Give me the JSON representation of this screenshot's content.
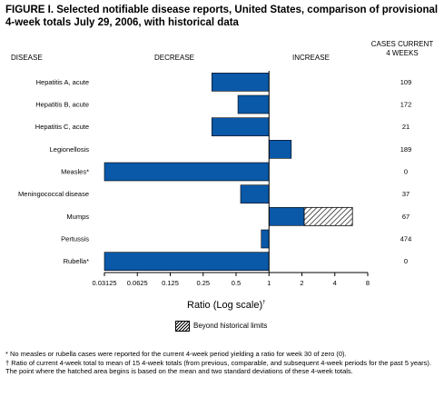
{
  "title": "FIGURE I. Selected notifiable disease reports, United States, comparison of provisional 4-week totals July 29, 2006, with historical data",
  "headers": {
    "disease": "DISEASE",
    "decrease": "DECREASE",
    "increase": "INCREASE",
    "cases_line1": "CASES CURRENT",
    "cases_line2": "4 WEEKS"
  },
  "xlabel": "Ratio (Log scale)",
  "xlabel_mark": "†",
  "legend": {
    "label": "Beyond historical limits"
  },
  "footnotes": [
    "* No measles or rubella cases were reported for the current 4-week period yielding a ratio for week 30 of zero (0).",
    "† Ratio of current 4-week total to mean of 15 4-week totals (from previous, comparable, and subsequent 4-week periods for the past 5 years). The point where the hatched area begins is based on the mean and two standard deviations of these 4-week totals."
  ],
  "colors": {
    "bar": "#0a58a8",
    "hatch": "#000000"
  },
  "chart_data": {
    "type": "bar",
    "orientation": "horizontal",
    "scale": "log2",
    "baseline": 1,
    "xlim": [
      0.03125,
      8
    ],
    "xticks": [
      0.03125,
      0.0625,
      0.125,
      0.25,
      0.5,
      1,
      2,
      4,
      8
    ],
    "xtick_labels": [
      "0.03125",
      "0.0625",
      "0.125",
      "0.25",
      "0.5",
      "1",
      "2",
      "4",
      "8"
    ],
    "categories": [
      "Hepatitis A, acute",
      "Hepatitis B, acute",
      "Hepatitis C, acute",
      "Legionellosis",
      "Measles*",
      "Meningococcal disease",
      "Mumps",
      "Pertussis",
      "Rubella*"
    ],
    "values": [
      0.3,
      0.52,
      0.3,
      1.6,
      0.03125,
      0.55,
      5.8,
      0.85,
      0.03125
    ],
    "historical_limit": [
      null,
      null,
      null,
      null,
      null,
      null,
      2.1,
      null,
      null
    ],
    "cases_current_4_weeks": [
      "109",
      "172",
      "21",
      "189",
      "0",
      "37",
      "67",
      "474",
      "0"
    ]
  }
}
